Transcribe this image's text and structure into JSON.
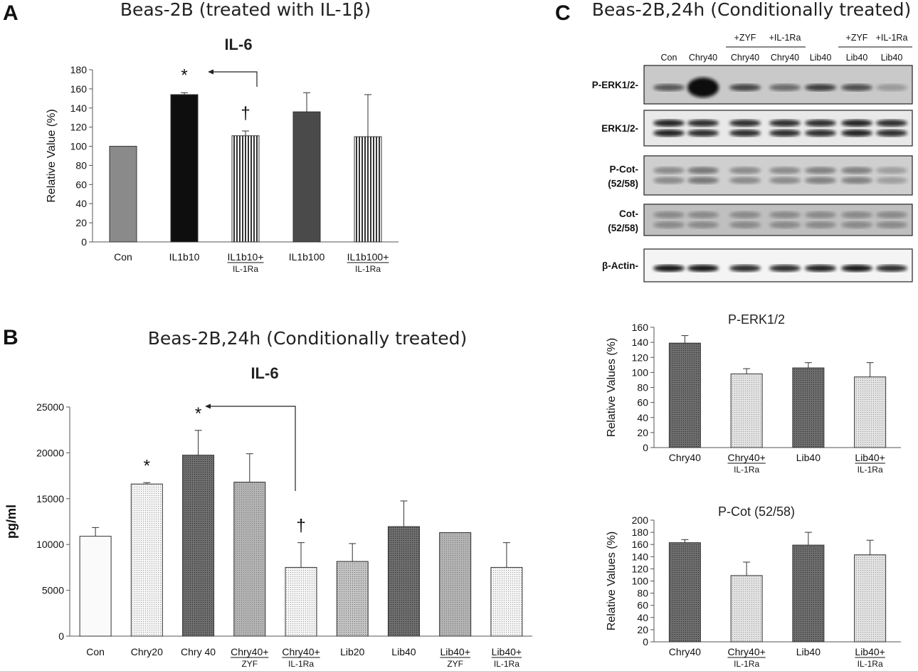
{
  "panels": {
    "A": {
      "letter": "A",
      "title": "Beas-2B (treated with IL-1β)",
      "chart_data": {
        "type": "bar",
        "title": "IL-6",
        "ylabel": "Relative Value (%)",
        "ylim": [
          0,
          180
        ],
        "yticks": [
          0,
          20,
          40,
          60,
          80,
          100,
          120,
          140,
          160,
          180
        ],
        "categories": [
          {
            "main": "Con",
            "sub": ""
          },
          {
            "main": "IL1b10",
            "sub": ""
          },
          {
            "main": "IL1b10+",
            "sub": "IL-1Ra"
          },
          {
            "main": "IL1b100",
            "sub": ""
          },
          {
            "main": "IL1b100+",
            "sub": "IL-1Ra"
          }
        ],
        "values": [
          100,
          154,
          111,
          136,
          110
        ],
        "errors": [
          0,
          2,
          5,
          20,
          44
        ],
        "annotations": [
          {
            "text": "*",
            "category": 1
          },
          {
            "text": "†",
            "category": 2
          }
        ]
      }
    },
    "B": {
      "letter": "B",
      "title": "Beas-2B,24h (Conditionally treated)",
      "chart_data": {
        "type": "bar",
        "title": "IL-6",
        "ylabel": "pg/ml",
        "ylim": [
          0,
          25000
        ],
        "yticks": [
          0,
          5000,
          10000,
          15000,
          20000,
          25000
        ],
        "categories": [
          {
            "main": "Con",
            "sub": ""
          },
          {
            "main": "Chry20",
            "sub": ""
          },
          {
            "main": "Chry 40",
            "sub": ""
          },
          {
            "main": "Chry40+",
            "sub": "ZYF"
          },
          {
            "main": "Chry40+",
            "sub": "IL-1Ra"
          },
          {
            "main": "Lib20",
            "sub": ""
          },
          {
            "main": "Lib40",
            "sub": ""
          },
          {
            "main": "Lib40+",
            "sub": "ZYF"
          },
          {
            "main": "Lib40+",
            "sub": "IL-1Ra"
          }
        ],
        "values": [
          10900,
          16600,
          19750,
          16800,
          7500,
          8150,
          11950,
          11300,
          7500
        ],
        "errors": [
          950,
          150,
          2700,
          3100,
          2700,
          1950,
          2800,
          0,
          2700
        ],
        "annotations": [
          {
            "text": "*",
            "category": 1
          },
          {
            "text": "*",
            "category": 2
          },
          {
            "text": "†",
            "category": 4
          }
        ]
      }
    },
    "C": {
      "letter": "C",
      "title": "Beas-2B,24h (Conditionally treated)",
      "blot": {
        "group_labels": [
          "+ZYF",
          "+IL-1Ra",
          "+ZYF",
          "+IL-1Ra"
        ],
        "lanes": [
          "Con",
          "Chry40",
          "Chry40",
          "Chry40",
          "Lib40",
          "Lib40",
          "Lib40"
        ],
        "rows": [
          {
            "label": "P-ERK1/2-",
            "label2": ""
          },
          {
            "label": "ERK1/2-",
            "label2": ""
          },
          {
            "label": "P-Cot-",
            "label2": "(52/58)"
          },
          {
            "label": "Cot-",
            "label2": "(52/58)"
          },
          {
            "label": "β-Actin-",
            "label2": ""
          }
        ]
      },
      "charts": [
        {
          "type": "bar",
          "title": "P-ERK1/2",
          "ylabel": "Relative Values  (%)",
          "ylim": [
            0,
            160
          ],
          "yticks": [
            0,
            20,
            40,
            60,
            80,
            100,
            120,
            140,
            160
          ],
          "categories": [
            {
              "main": "Chry40",
              "sub": ""
            },
            {
              "main": "Chry40+",
              "sub": "IL-1Ra"
            },
            {
              "main": "Lib40",
              "sub": ""
            },
            {
              "main": "Lib40+",
              "sub": "IL-1Ra"
            }
          ],
          "values": [
            139,
            98,
            106,
            94
          ],
          "errors": [
            10,
            7,
            7,
            19
          ]
        },
        {
          "type": "bar",
          "title": "P-Cot (52/58)",
          "ylabel": "Relative Values  (%)",
          "ylim": [
            0,
            200
          ],
          "yticks": [
            0,
            20,
            40,
            60,
            80,
            100,
            120,
            140,
            160,
            180,
            200
          ],
          "categories": [
            {
              "main": "Chry40",
              "sub": ""
            },
            {
              "main": "Chry40+",
              "sub": "IL-1Ra"
            },
            {
              "main": "Lib40",
              "sub": ""
            },
            {
              "main": "Lib40+",
              "sub": "IL-1Ra"
            }
          ],
          "values": [
            163,
            109,
            159,
            143
          ],
          "errors": [
            5,
            22,
            21,
            24
          ]
        }
      ]
    }
  }
}
